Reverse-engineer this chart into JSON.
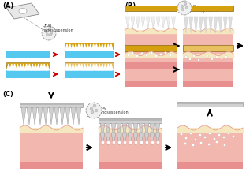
{
  "bg_color": "#ffffff",
  "label_A": "(A)",
  "label_B": "(B)",
  "label_C": "(C)",
  "skin_pink": "#f2b8b0",
  "skin_dark_pink": "#e89090",
  "skin_cream": "#f5e8c0",
  "blue_bg": "#55c8f0",
  "gold_color": "#d4a010",
  "gold_light": "#e8c060",
  "gray_dark": "#909090",
  "gray_mid": "#b8b8b8",
  "gray_light": "#d0d0d0",
  "arrow_red": "#cc0000",
  "text_drug": "Drug\nnanosuspension",
  "font_size_label": 6,
  "font_size_small": 3.5
}
